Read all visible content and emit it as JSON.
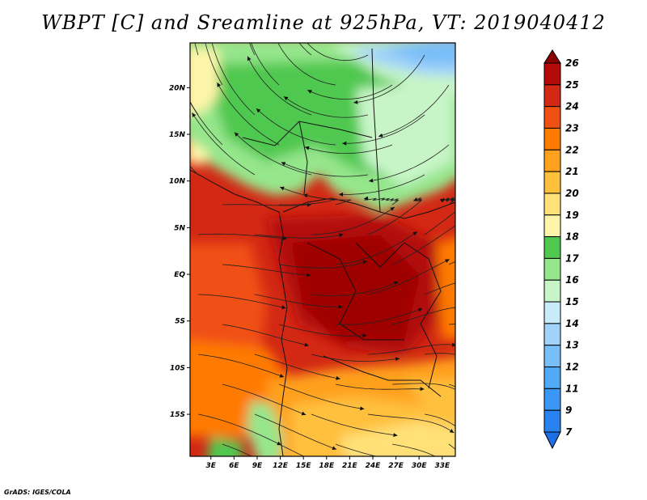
{
  "chart_data": {
    "type": "heatmap",
    "title": "WBPT [C] and Sreamline at 925hPa, VT: 2019040412",
    "variable": "Wet-bulb potential temperature (C) with streamlines, 925 hPa",
    "x_ticks": [
      "3E",
      "6E",
      "9E",
      "12E",
      "15E",
      "18E",
      "21E",
      "24E",
      "27E",
      "30E",
      "33E"
    ],
    "x_values": [
      3,
      6,
      9,
      12,
      15,
      18,
      21,
      24,
      27,
      30,
      33
    ],
    "y_ticks": [
      "20N",
      "15N",
      "10N",
      "5N",
      "EQ",
      "5S",
      "10S",
      "15S"
    ],
    "y_values": [
      20,
      15,
      10,
      5,
      0,
      -5,
      -10,
      -15
    ],
    "xlim": [
      0.3,
      34.7
    ],
    "ylim": [
      -19.5,
      24.8
    ],
    "colorbar": {
      "labels": [
        "7",
        "9",
        "11",
        "12",
        "13",
        "14",
        "15",
        "16",
        "17",
        "18",
        "19",
        "20",
        "21",
        "22",
        "23",
        "24",
        "25",
        "26"
      ],
      "colors": [
        "#1e6ee6",
        "#2882f0",
        "#3c96f5",
        "#50aaf5",
        "#78bef8",
        "#a0d2fa",
        "#c8ebfa",
        "#c8f5c8",
        "#96e68c",
        "#50c850",
        "#fff5aa",
        "#ffe178",
        "#ffc03c",
        "#ffa01e",
        "#ff7a00",
        "#f05014",
        "#d22814",
        "#b40a0a",
        "#8c0000"
      ],
      "extend": "both"
    },
    "regions": [
      {
        "name": "north-green-band",
        "value_range": [
          15,
          18
        ],
        "location": "north of ~12N"
      },
      {
        "name": "northeast-blue-core",
        "value_range": [
          12,
          14
        ],
        "location": "top-right near 28-33E, 22-24N"
      },
      {
        "name": "equatorial-maximum",
        "value_range": [
          24,
          26
        ],
        "location": "0-12N to 10S, interior"
      },
      {
        "name": "southern-orange",
        "value_range": [
          20,
          23
        ],
        "location": "south of ~12S"
      },
      {
        "name": "southwest-green",
        "value_range": [
          15,
          18
        ],
        "location": "coastal 9-12E, 15-19S"
      }
    ],
    "streamlines": true,
    "coastlines": true
  },
  "credit": "GrADS: IGES/COLA"
}
